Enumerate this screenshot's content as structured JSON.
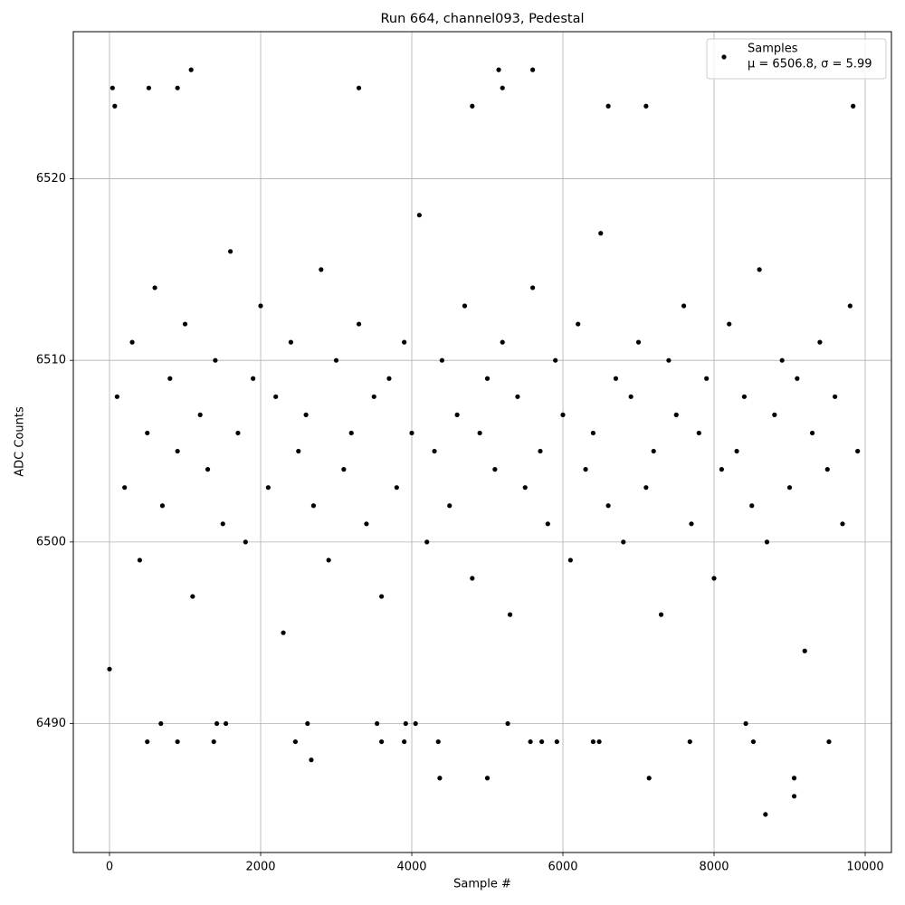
{
  "chart_data": {
    "type": "scatter",
    "title": "Run 664, channel093, Pedestal",
    "x_label": "Sample #",
    "y_label": "ADC Counts",
    "xlim": [
      -479,
      10347
    ],
    "ylim": [
      6482.9,
      6528.1
    ],
    "xticks": [
      0,
      2000,
      4000,
      6000,
      8000,
      10000
    ],
    "yticks": [
      6490,
      6500,
      6510,
      6520
    ],
    "grid": true,
    "legend": "upper right",
    "series": [
      {
        "name": "Samples",
        "label": "μ = 6506.8, σ = 5.99",
        "color": "#000000",
        "x": [
          40,
          70,
          900,
          1080,
          520,
          5150,
          5600,
          5200,
          3300,
          9840,
          7100,
          6600,
          4800,
          8680,
          9060,
          9060,
          4370,
          5000,
          7140,
          2670,
          500,
          900,
          1380,
          2460,
          3600,
          3900,
          4350,
          5570,
          5720,
          5920,
          6400,
          6480,
          7680,
          8520,
          9520,
          0,
          680,
          1420,
          1540,
          2620,
          3540,
          3920,
          4050,
          5270,
          8420,
          100,
          200,
          300,
          400,
          500,
          600,
          700,
          800,
          900,
          1000,
          1100,
          1200,
          1300,
          1400,
          1500,
          1600,
          1700,
          1800,
          1900,
          2000,
          2100,
          2200,
          2300,
          2400,
          2500,
          2600,
          2700,
          2800,
          2900,
          3000,
          3100,
          3200,
          3300,
          3400,
          3500,
          3600,
          3700,
          3800,
          3900,
          4000,
          4100,
          4200,
          4300,
          4400,
          4500,
          4600,
          4700,
          4800,
          4900,
          5000,
          5100,
          5200,
          5300,
          5400,
          5500,
          5600,
          5700,
          5800,
          5900,
          6000,
          6100,
          6200,
          6300,
          6400,
          6500,
          6600,
          6700,
          6800,
          6900,
          7000,
          7100,
          7200,
          7300,
          7400,
          7500,
          7600,
          7700,
          7800,
          7900,
          8000,
          8100,
          8200,
          8300,
          8400,
          8500,
          8600,
          8700,
          8800,
          8900,
          9000,
          9100,
          9200,
          9300,
          9400,
          9500,
          9600,
          9700,
          9800,
          9900
        ],
        "values": [
          6525,
          6524,
          6525,
          6526,
          6525,
          6526,
          6526,
          6525,
          6525,
          6524,
          6524,
          6524,
          6524,
          6485,
          6486,
          6487,
          6487,
          6487,
          6487,
          6488,
          6489,
          6489,
          6489,
          6489,
          6489,
          6489,
          6489,
          6489,
          6489,
          6489,
          6489,
          6489,
          6489,
          6489,
          6489,
          6493,
          6490,
          6490,
          6490,
          6490,
          6490,
          6490,
          6490,
          6490,
          6490,
          6508,
          6503,
          6511,
          6499,
          6506,
          6514,
          6502,
          6509,
          6505,
          6512,
          6497,
          6507,
          6504,
          6510,
          6501,
          6516,
          6506,
          6500,
          6509,
          6513,
          6503,
          6508,
          6495,
          6511,
          6505,
          6507,
          6502,
          6515,
          6499,
          6510,
          6504,
          6506,
          6512,
          6501,
          6508,
          6497,
          6509,
          6503,
          6511,
          6506,
          6518,
          6500,
          6505,
          6510,
          6502,
          6507,
          6513,
          6498,
          6506,
          6509,
          6504,
          6511,
          6496,
          6508,
          6503,
          6514,
          6505,
          6501,
          6510,
          6507,
          6499,
          6512,
          6504,
          6506,
          6517,
          6502,
          6509,
          6500,
          6508,
          6511,
          6503,
          6505,
          6496,
          6510,
          6507,
          6513,
          6501,
          6506,
          6509,
          6498,
          6504,
          6512,
          6505,
          6508,
          6502,
          6515,
          6500,
          6507,
          6510,
          6503,
          6509,
          6494,
          6506,
          6511,
          6504,
          6508,
          6501,
          6513,
          6505
        ]
      }
    ]
  }
}
